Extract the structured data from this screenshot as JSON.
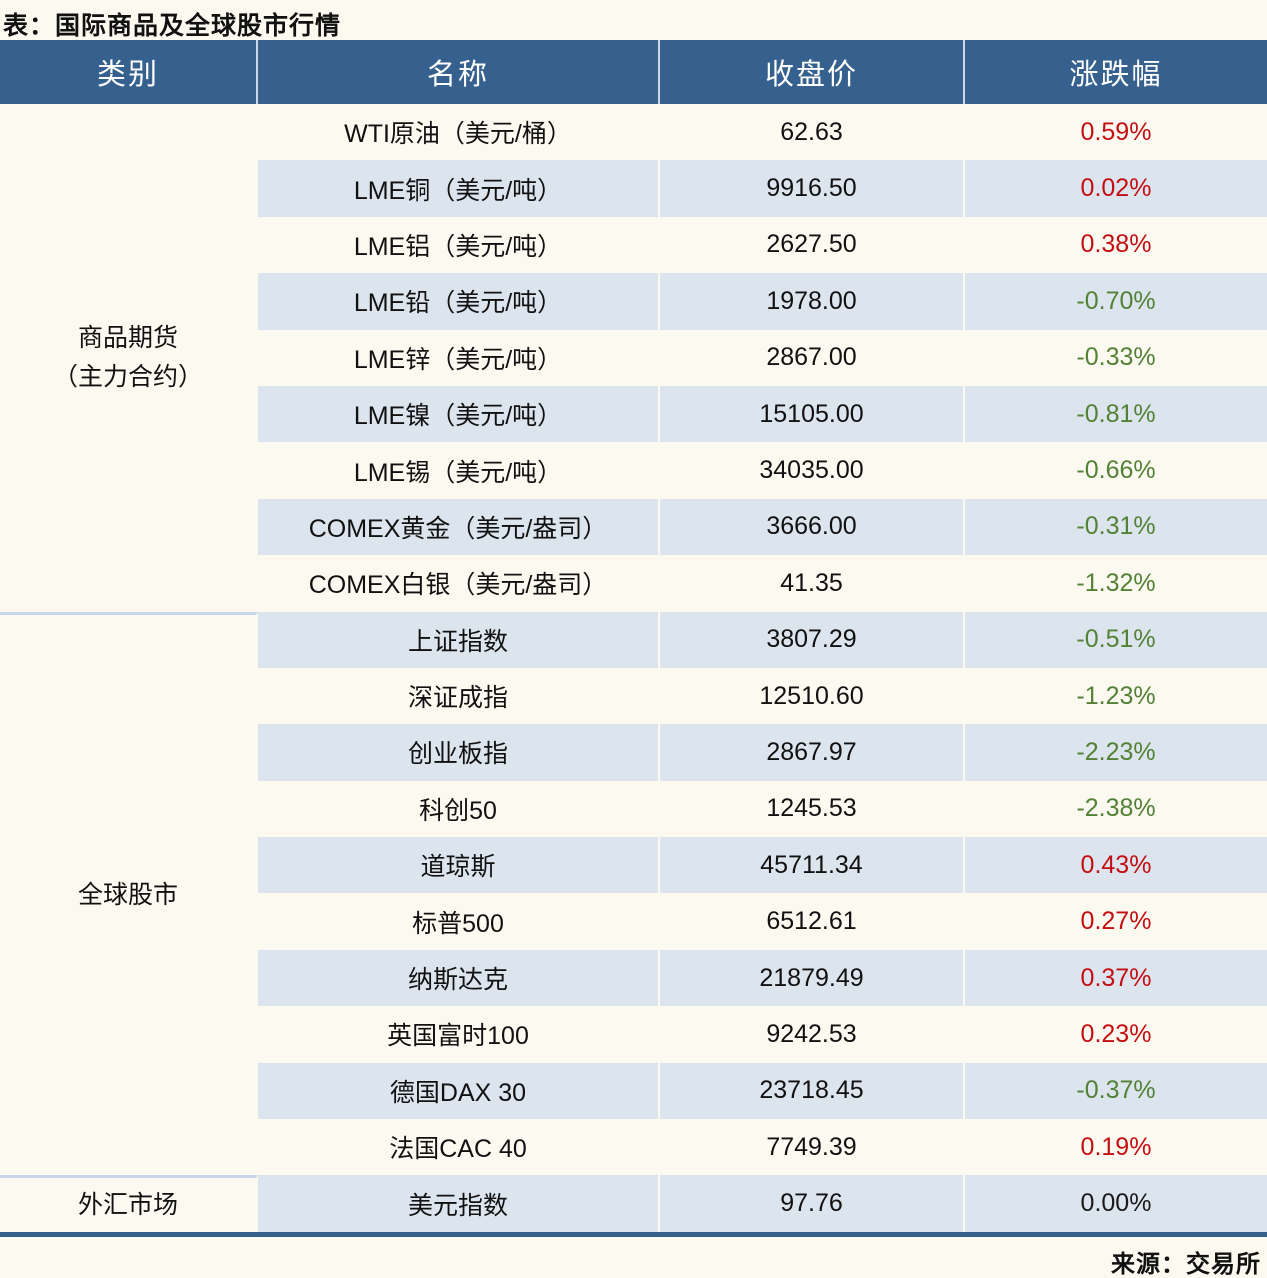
{
  "title": "表：国际商品及全球股市行情",
  "source": "来源：交易所",
  "columns": [
    "类别",
    "名称",
    "收盘价",
    "涨跌幅"
  ],
  "colors": {
    "header_bg": "#36618e",
    "stripe": "#dce4ee",
    "up_red": "#c50e12",
    "down_green": "#538135",
    "flat_black": "#1a1a1a",
    "bottom_border": "#35608d"
  },
  "groups": [
    {
      "category_lines": [
        "商品期货",
        "（主力合约）"
      ],
      "rows": [
        {
          "name": "WTI原油（美元/桶）",
          "close": "62.63",
          "change": "0.59%",
          "direction": "up"
        },
        {
          "name": "LME铜（美元/吨）",
          "close": "9916.50",
          "change": "0.02%",
          "direction": "up"
        },
        {
          "name": "LME铝（美元/吨）",
          "close": "2627.50",
          "change": "0.38%",
          "direction": "up"
        },
        {
          "name": "LME铅（美元/吨）",
          "close": "1978.00",
          "change": "-0.70%",
          "direction": "down"
        },
        {
          "name": "LME锌（美元/吨）",
          "close": "2867.00",
          "change": "-0.33%",
          "direction": "down"
        },
        {
          "name": "LME镍（美元/吨）",
          "close": "15105.00",
          "change": "-0.81%",
          "direction": "down"
        },
        {
          "name": "LME锡（美元/吨）",
          "close": "34035.00",
          "change": "-0.66%",
          "direction": "down"
        },
        {
          "name": "COMEX黄金（美元/盎司）",
          "close": "3666.00",
          "change": "-0.31%",
          "direction": "down"
        },
        {
          "name": "COMEX白银（美元/盎司）",
          "close": "41.35",
          "change": "-1.32%",
          "direction": "down"
        }
      ]
    },
    {
      "category_lines": [
        "全球股市"
      ],
      "rows": [
        {
          "name": "上证指数",
          "close": "3807.29",
          "change": "-0.51%",
          "direction": "down"
        },
        {
          "name": "深证成指",
          "close": "12510.60",
          "change": "-1.23%",
          "direction": "down"
        },
        {
          "name": "创业板指",
          "close": "2867.97",
          "change": "-2.23%",
          "direction": "down"
        },
        {
          "name": "科创50",
          "close": "1245.53",
          "change": "-2.38%",
          "direction": "down"
        },
        {
          "name": "道琼斯",
          "close": "45711.34",
          "change": "0.43%",
          "direction": "up"
        },
        {
          "name": "标普500",
          "close": "6512.61",
          "change": "0.27%",
          "direction": "up"
        },
        {
          "name": "纳斯达克",
          "close": "21879.49",
          "change": "0.37%",
          "direction": "up"
        },
        {
          "name": "英国富时100",
          "close": "9242.53",
          "change": "0.23%",
          "direction": "up"
        },
        {
          "name": "德国DAX 30",
          "close": "23718.45",
          "change": "-0.37%",
          "direction": "down"
        },
        {
          "name": "法国CAC 40",
          "close": "7749.39",
          "change": "0.19%",
          "direction": "up"
        }
      ]
    },
    {
      "category_lines": [
        "外汇市场"
      ],
      "rows": [
        {
          "name": "美元指数",
          "close": "97.76",
          "change": "0.00%",
          "direction": "flat"
        }
      ]
    }
  ]
}
